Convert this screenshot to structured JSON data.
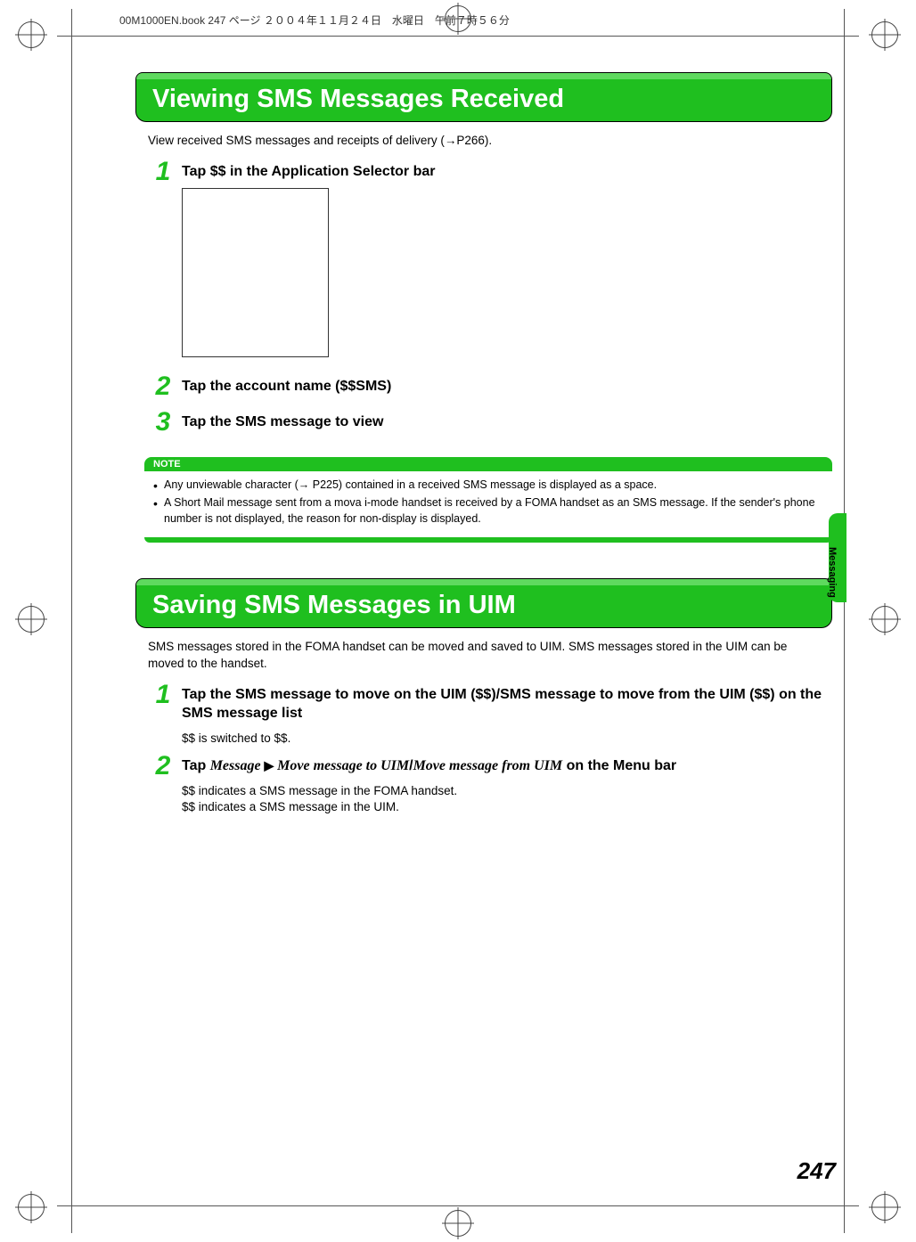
{
  "colors": {
    "green_main": "#1fbf1f",
    "green_light": "#5fd95f",
    "text": "#000000",
    "background": "#ffffff"
  },
  "header": "00M1000EN.book  247 ページ  ２００４年１１月２４日　水曜日　午前７時５６分",
  "side_tab_label": "Messaging",
  "page_number": "247",
  "section1": {
    "title": "Viewing SMS Messages Received",
    "intro": "View received SMS messages and receipts of delivery (→P266).",
    "steps": [
      {
        "num": "1",
        "title": "Tap $$ in the Application Selector bar"
      },
      {
        "num": "2",
        "title": "Tap the account name ($$SMS)"
      },
      {
        "num": "3",
        "title": "Tap the SMS message to view"
      }
    ]
  },
  "note": {
    "label": "NOTE",
    "items": [
      "Any unviewable character (→ P225) contained in a received SMS message is displayed as a space.",
      "A Short Mail message sent from a mova i-mode handset is received by a FOMA handset as an SMS message. If the sender's phone number is not displayed, the reason for non-display is displayed."
    ]
  },
  "section2": {
    "title": "Saving SMS Messages in UIM",
    "intro": "SMS messages stored in the FOMA handset can be moved and saved to UIM. SMS messages stored in the UIM can be moved to the handset.",
    "steps": [
      {
        "num": "1",
        "title": "Tap the SMS message to move on the UIM ($$)/SMS message to move from the UIM ($$) on the SMS message list",
        "desc": "$$ is switched to $$."
      },
      {
        "num": "2",
        "title_prefix": "Tap ",
        "title_menu1": "Message",
        "title_arrow": " ▶ ",
        "title_menu2": "Move message to UIM",
        "title_slash": "/",
        "title_menu3": "Move message from UIM",
        "title_suffix": " on the Menu bar",
        "desc": "$$ indicates a SMS message in the FOMA handset.\n$$ indicates a SMS message in the UIM."
      }
    ]
  }
}
